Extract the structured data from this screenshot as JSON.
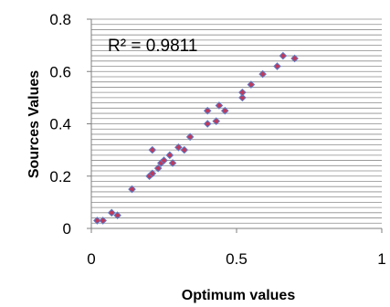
{
  "chart_data": {
    "type": "scatter",
    "title": "",
    "xlabel": "Optimum values",
    "ylabel": "Sources Values",
    "xlim": [
      0,
      1
    ],
    "ylim": [
      0,
      0.8
    ],
    "x_ticks": [
      "0",
      "0.5",
      "1"
    ],
    "y_ticks": [
      "0",
      "0.2",
      "0.4",
      "0.6",
      "0.8"
    ],
    "annotation": "R² = 0.9811",
    "grid": true,
    "legend": "none",
    "marker_color": "#c0395a",
    "marker_edge_color": "#5b7ac7",
    "grid_color": "#8c8c8c",
    "series": [
      {
        "points": [
          [
            0.02,
            0.03
          ],
          [
            0.04,
            0.03
          ],
          [
            0.07,
            0.06
          ],
          [
            0.09,
            0.05
          ],
          [
            0.14,
            0.15
          ],
          [
            0.2,
            0.2
          ],
          [
            0.21,
            0.21
          ],
          [
            0.21,
            0.3
          ],
          [
            0.23,
            0.23
          ],
          [
            0.24,
            0.25
          ],
          [
            0.25,
            0.26
          ],
          [
            0.27,
            0.28
          ],
          [
            0.28,
            0.25
          ],
          [
            0.3,
            0.31
          ],
          [
            0.32,
            0.3
          ],
          [
            0.34,
            0.35
          ],
          [
            0.4,
            0.4
          ],
          [
            0.4,
            0.45
          ],
          [
            0.43,
            0.41
          ],
          [
            0.44,
            0.47
          ],
          [
            0.46,
            0.45
          ],
          [
            0.52,
            0.5
          ],
          [
            0.52,
            0.52
          ],
          [
            0.55,
            0.55
          ],
          [
            0.59,
            0.59
          ],
          [
            0.64,
            0.62
          ],
          [
            0.66,
            0.66
          ],
          [
            0.7,
            0.65
          ]
        ]
      }
    ]
  }
}
